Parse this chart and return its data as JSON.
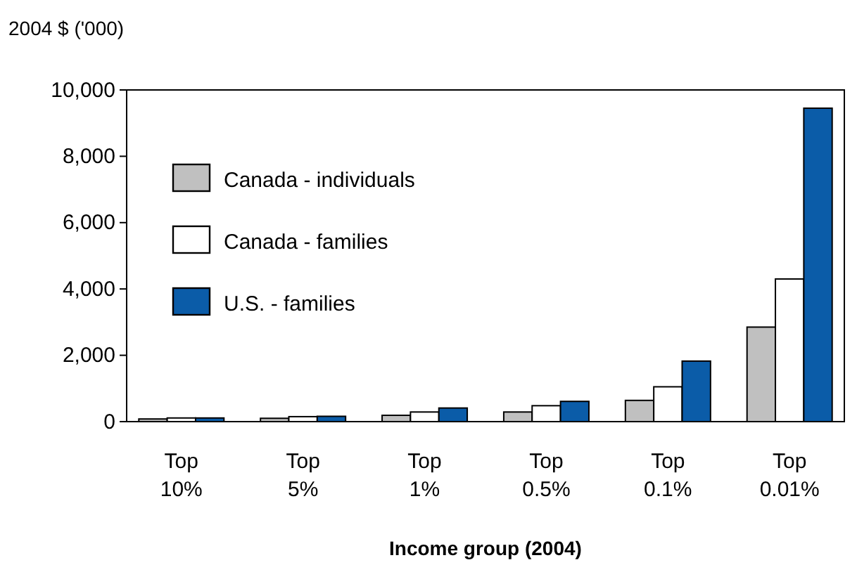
{
  "chart_data": {
    "type": "bar",
    "ylabel": "2004 $ ('000)",
    "xlabel": "Income group (2004)",
    "categories": [
      "Top 10%",
      "Top 5%",
      "Top 1%",
      "Top 0.5%",
      "Top 0.1%",
      "Top 0.01%"
    ],
    "series": [
      {
        "name": "Canada - individuals",
        "color": "#c0c0c0",
        "values": [
          80,
          100,
          190,
          290,
          640,
          2850
        ]
      },
      {
        "name": "Canada - families",
        "color": "#ffffff",
        "values": [
          110,
          150,
          290,
          480,
          1050,
          4300
        ]
      },
      {
        "name": "U.S. - families",
        "color": "#0b5ca8",
        "values": [
          110,
          160,
          410,
          610,
          1825,
          9450
        ]
      }
    ],
    "ylim": [
      0,
      10000
    ],
    "yticks": [
      {
        "value": 0,
        "label": "0"
      },
      {
        "value": 2000,
        "label": "2,000"
      },
      {
        "value": 4000,
        "label": "4,000"
      },
      {
        "value": 6000,
        "label": "6,000"
      },
      {
        "value": 8000,
        "label": "8,000"
      },
      {
        "value": 10000,
        "label": "10,000"
      }
    ],
    "legend": "top left",
    "grid": false
  }
}
